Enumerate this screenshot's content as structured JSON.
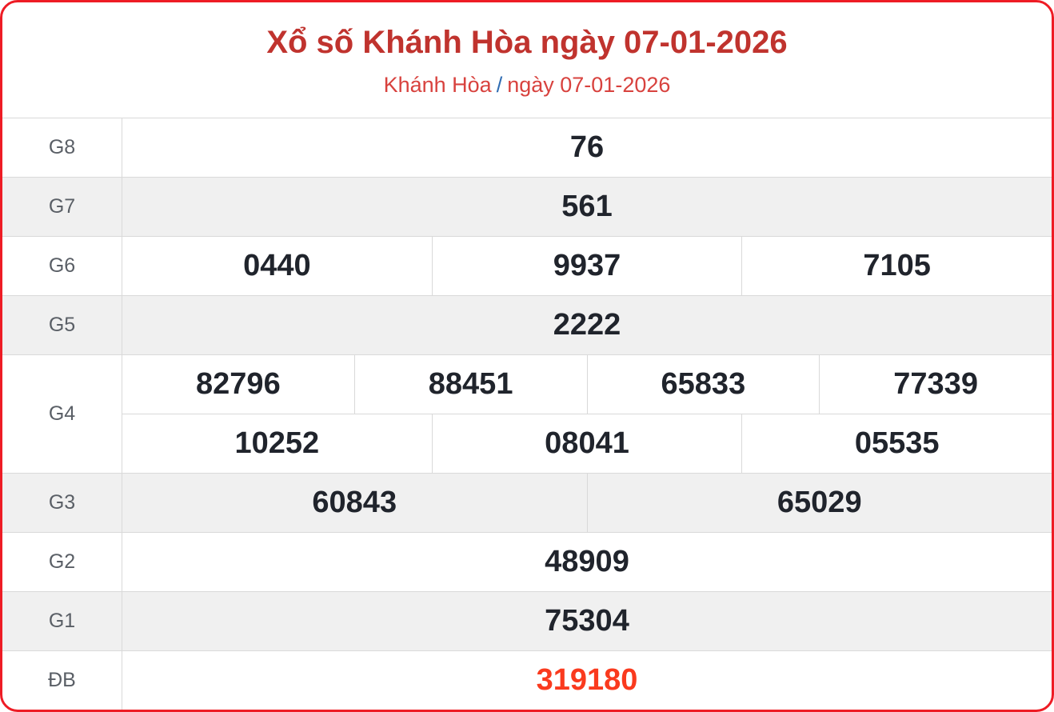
{
  "header": {
    "title": "Xổ số Khánh Hòa ngày 07-01-2026",
    "subtitle_region": "Khánh Hòa",
    "subtitle_separator": "/",
    "subtitle_date": "ngày 07-01-2026"
  },
  "colors": {
    "frame_red": "#ee1c25",
    "title_red": "#c0332e",
    "subtitle_red": "#d8423e",
    "separator_blue": "#2f6cb3",
    "special_prize_red": "#fa3a1e",
    "stripe_gray": "#f0f0f0",
    "border_gray": "#d9d9d9",
    "label_gray": "#5a5f66",
    "value_dark": "#20242c"
  },
  "results": {
    "g8": {
      "label": "G8",
      "values": [
        "76"
      ]
    },
    "g7": {
      "label": "G7",
      "values": [
        "561"
      ]
    },
    "g6": {
      "label": "G6",
      "values": [
        "0440",
        "9937",
        "7105"
      ]
    },
    "g5": {
      "label": "G5",
      "values": [
        "2222"
      ]
    },
    "g4": {
      "label": "G4",
      "line1": [
        "82796",
        "88451",
        "65833",
        "77339"
      ],
      "line2": [
        "10252",
        "08041",
        "05535"
      ]
    },
    "g3": {
      "label": "G3",
      "values": [
        "60843",
        "65029"
      ]
    },
    "g2": {
      "label": "G2",
      "values": [
        "48909"
      ]
    },
    "g1": {
      "label": "G1",
      "values": [
        "75304"
      ]
    },
    "db": {
      "label": "ĐB",
      "values": [
        "319180"
      ]
    }
  }
}
